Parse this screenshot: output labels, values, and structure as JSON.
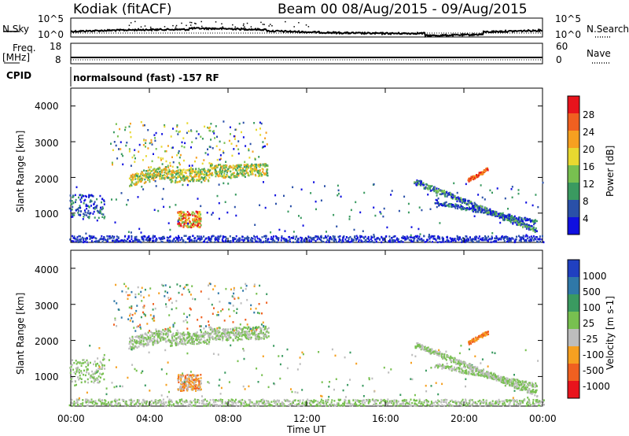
{
  "header": {
    "title_left": "Kodiak (fitACF)",
    "title_right": "Beam 00 08/Aug/2015 - 09/Aug/2015"
  },
  "noise_panel": {
    "left_label": "N.Sky",
    "right_label": "N.Search",
    "tick_top": "10^5",
    "tick_bottom": "10^0"
  },
  "freq_panel": {
    "left_label_1": "Freq.",
    "left_label_2": "[MHz]",
    "tick_top_left": "18",
    "tick_bottom_left": "8",
    "tick_top_right": "60",
    "tick_bottom_right": "0",
    "right_label": "Nave"
  },
  "cpid": {
    "label": "CPID",
    "text": "normalsound (fast) -157 RF"
  },
  "chart_data": [
    {
      "type": "heatmap",
      "ylabel": "Slant Range [km]",
      "yticks": [
        "4000",
        "3000",
        "2000",
        "1000"
      ],
      "ylim": [
        180,
        4500
      ],
      "xlim_hours": [
        0,
        24
      ],
      "colorbar": {
        "label": "Power [dB]",
        "ticks": [
          "28",
          "24",
          "20",
          "16",
          "12",
          "8",
          "4"
        ],
        "colors": [
          "#e8141c",
          "#f06020",
          "#f6a020",
          "#e8d830",
          "#78c050",
          "#3a9a60",
          "#2a50a8",
          "#1010e0"
        ]
      }
    },
    {
      "type": "heatmap",
      "ylabel": "Slant Range [km]",
      "yticks": [
        "4000",
        "3000",
        "2000",
        "1000"
      ],
      "ylim": [
        180,
        4500
      ],
      "xlim_hours": [
        0,
        24
      ],
      "xticks": [
        "00:00",
        "04:00",
        "08:00",
        "12:00",
        "16:00",
        "20:00",
        "00:00"
      ],
      "xlabel": "Time UT",
      "colorbar": {
        "label": "Velocity [m s-1]",
        "ticks": [
          "1000",
          "500",
          "100",
          "25",
          "-25",
          "-100",
          "-500",
          "-1000"
        ],
        "colors": [
          "#2040c0",
          "#2f78a8",
          "#3a9a60",
          "#78c050",
          "#bdbdbd",
          "#f6a020",
          "#f06020",
          "#e8141c"
        ]
      }
    }
  ]
}
